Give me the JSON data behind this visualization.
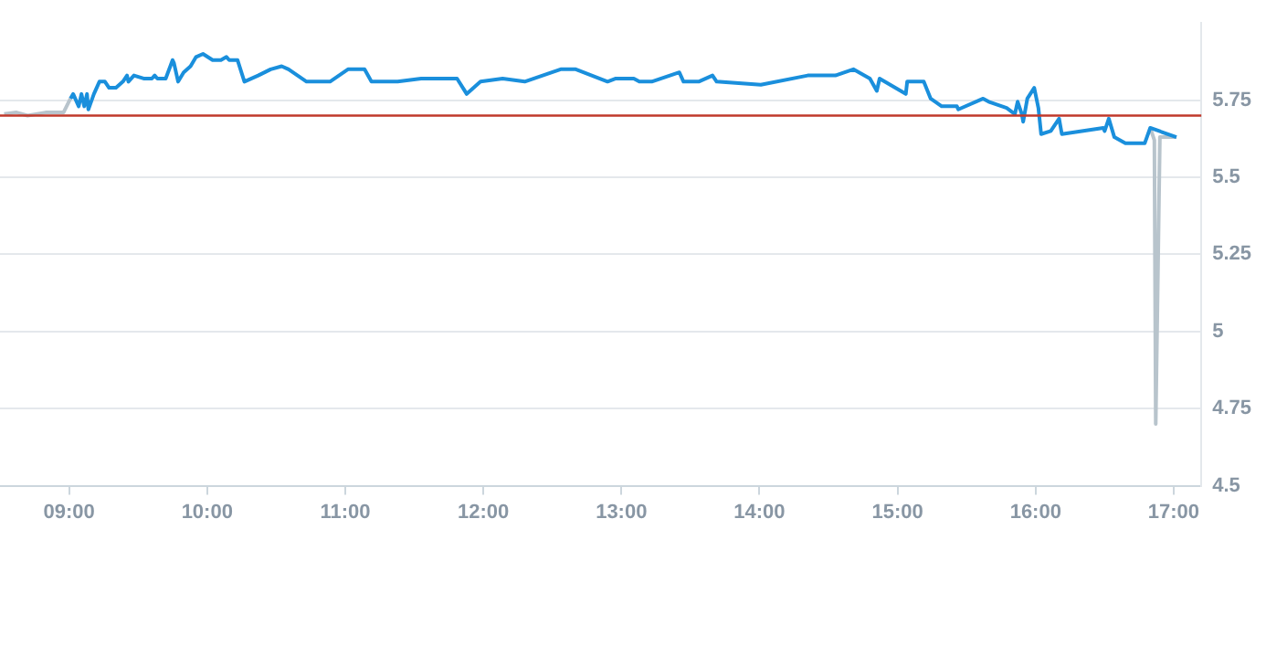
{
  "chart_data": {
    "type": "line",
    "xlim": [
      8.5,
      17.2
    ],
    "ylim": [
      4.5,
      6.0
    ],
    "xticks": [
      {
        "value": 9,
        "label": "09:00"
      },
      {
        "value": 10,
        "label": "10:00"
      },
      {
        "value": 11,
        "label": "11:00"
      },
      {
        "value": 12,
        "label": "12:00"
      },
      {
        "value": 13,
        "label": "13:00"
      },
      {
        "value": 14,
        "label": "14:00"
      },
      {
        "value": 15,
        "label": "15:00"
      },
      {
        "value": 16,
        "label": "16:00"
      },
      {
        "value": 17,
        "label": "17:00"
      }
    ],
    "yticks": [
      4.5,
      4.75,
      5,
      5.25,
      5.5,
      5.75
    ],
    "grid": "y",
    "legend": false,
    "marker": "none",
    "line_style": "solid",
    "ref_lines": [
      {
        "axis": "y",
        "value": 5.7,
        "color": "#c0392b"
      }
    ],
    "series": [
      {
        "color": "#b8c4cc",
        "x": [
          8.53,
          8.62,
          8.7,
          8.83,
          8.96,
          9.01
        ],
        "values": [
          5.705,
          5.71,
          5.7,
          5.71,
          5.71,
          5.755
        ]
      },
      {
        "color": "#1a8fdc",
        "x": [
          9.01,
          9.03,
          9.07,
          9.09,
          9.11,
          9.13,
          9.14,
          9.18,
          9.22,
          9.26,
          9.29,
          9.34,
          9.39,
          9.42,
          9.43,
          9.47,
          9.54,
          9.6,
          9.62,
          9.64,
          9.7,
          9.75,
          9.76,
          9.79,
          9.83,
          9.88,
          9.92,
          9.97,
          10.04,
          10.1,
          10.14,
          10.16,
          10.22,
          10.27,
          10.37,
          10.46,
          10.54,
          10.59,
          10.72,
          10.89,
          11.02,
          11.14,
          11.19,
          11.38,
          11.55,
          11.81,
          11.88,
          11.98,
          12.14,
          12.3,
          12.56,
          12.67,
          12.9,
          12.96,
          13.09,
          13.13,
          13.22,
          13.42,
          13.45,
          13.56,
          13.66,
          13.69,
          14.01,
          14.35,
          14.55,
          14.68,
          14.8,
          14.85,
          14.87,
          15.06,
          15.07,
          15.19,
          15.24,
          15.32,
          15.43,
          15.44,
          15.62,
          15.66,
          15.79,
          15.85,
          15.87,
          15.9,
          15.91,
          15.94,
          15.99,
          16.02,
          16.04,
          16.11,
          16.17,
          16.19,
          16.49,
          16.5,
          16.53,
          16.57,
          16.65,
          16.79,
          16.83,
          17.02
        ],
        "values": [
          5.755,
          5.77,
          5.73,
          5.77,
          5.73,
          5.77,
          5.72,
          5.77,
          5.81,
          5.81,
          5.79,
          5.79,
          5.81,
          5.83,
          5.81,
          5.83,
          5.82,
          5.82,
          5.83,
          5.82,
          5.82,
          5.88,
          5.87,
          5.81,
          5.84,
          5.86,
          5.89,
          5.9,
          5.88,
          5.88,
          5.89,
          5.88,
          5.88,
          5.81,
          5.83,
          5.85,
          5.86,
          5.85,
          5.81,
          5.81,
          5.85,
          5.85,
          5.81,
          5.81,
          5.82,
          5.82,
          5.77,
          5.81,
          5.82,
          5.81,
          5.85,
          5.85,
          5.81,
          5.82,
          5.82,
          5.81,
          5.81,
          5.84,
          5.81,
          5.81,
          5.83,
          5.81,
          5.8,
          5.83,
          5.83,
          5.85,
          5.82,
          5.78,
          5.82,
          5.77,
          5.81,
          5.81,
          5.755,
          5.73,
          5.73,
          5.72,
          5.755,
          5.745,
          5.725,
          5.705,
          5.745,
          5.705,
          5.68,
          5.755,
          5.79,
          5.725,
          5.64,
          5.65,
          5.69,
          5.64,
          5.66,
          5.65,
          5.69,
          5.63,
          5.61,
          5.61,
          5.66,
          5.63
        ]
      },
      {
        "color": "#b8c4cc",
        "x": [
          16.83,
          16.86,
          16.87,
          16.9,
          17.02
        ],
        "values": [
          5.66,
          5.62,
          4.7,
          5.63,
          5.63
        ]
      }
    ]
  }
}
